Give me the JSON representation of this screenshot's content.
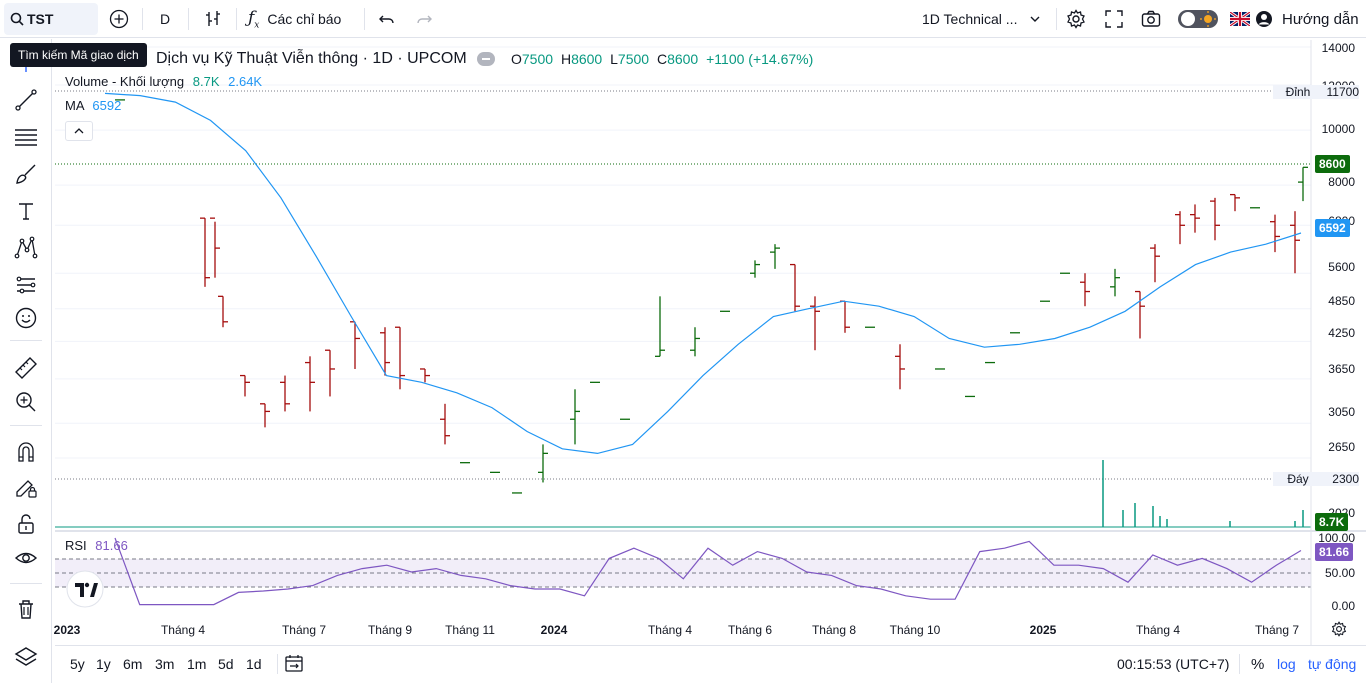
{
  "topbar": {
    "symbol": "TST",
    "interval": "D",
    "indicators_label": "Các chỉ báo",
    "layout_name": "1D Technical ...",
    "help_label": "Hướng dẫn",
    "search_tooltip": "Tìm kiếm Mã giao dịch"
  },
  "legend": {
    "title": "Dịch vụ Kỹ Thuật Viễn thông · 1D · UPCOM",
    "o_key": "O",
    "o_val": "7500",
    "h_key": "H",
    "h_val": "8600",
    "l_key": "L",
    "l_val": "7500",
    "c_key": "C",
    "c_val": "8600",
    "change": "+1100 (+14.67%)",
    "volume_label": "Volume - Khối lượng",
    "volume_val1": "8.7K",
    "volume_val2": "2.64K",
    "ma_label": "MA",
    "ma_val": "6592",
    "rsi_label": "RSI",
    "rsi_val": "81.66"
  },
  "price_axis": {
    "ticks": [
      "14000",
      "12000",
      "10000",
      "8000",
      "6800",
      "5600",
      "4850",
      "4250",
      "3650",
      "3050",
      "2650",
      "2300",
      "2020"
    ],
    "peak_label": "Đỉnh",
    "peak_value": "11700",
    "trough_label": "Đáy",
    "trough_value": "2300",
    "last_price": "8600",
    "ma_tag": "6592",
    "volume_tag": "8.7K"
  },
  "rsi_axis": {
    "ticks": [
      "100.00",
      "50.00",
      "0.00"
    ],
    "tag": "81.66"
  },
  "time_axis": {
    "labels": [
      "2023",
      "Tháng 4",
      "Tháng 7",
      "Tháng 9",
      "Tháng 11",
      "2024",
      "Tháng 4",
      "Tháng 6",
      "Tháng 8",
      "Tháng 10",
      "2025",
      "Tháng 4",
      "Tháng 7"
    ]
  },
  "bottombar": {
    "ranges": [
      "5y",
      "1y",
      "6m",
      "3m",
      "1m",
      "5d",
      "1d"
    ],
    "clock": "00:15:53 (UTC+7)",
    "percent": "%",
    "log": "log",
    "auto": "tự động"
  },
  "colors": {
    "up": "#089981",
    "down": "#f23645",
    "bar_up": "#0c6b0c",
    "bar_down": "#a50d0d",
    "ma": "#2196f3",
    "rsi": "#7e57c2",
    "accent": "#2962ff"
  },
  "chart_data": {
    "type": "line",
    "series": [
      {
        "name": "MA",
        "values": [
          11600,
          11500,
          11200,
          10400,
          9200,
          7600,
          6000,
          4700,
          3700,
          3600,
          3450,
          3250,
          2950,
          2750,
          2700,
          2800,
          3200,
          3700,
          4200,
          4700,
          4850,
          5000,
          4900,
          4700,
          4300,
          4150,
          4200,
          4300,
          4500,
          4800,
          5300,
          5800,
          6100,
          6300,
          6592
        ]
      },
      {
        "name": "RSI",
        "values": [
          100,
          2,
          2,
          2,
          2,
          20,
          22,
          25,
          30,
          45,
          55,
          60,
          50,
          55,
          45,
          40,
          30,
          25,
          25,
          15,
          70,
          85,
          70,
          40,
          85,
          60,
          80,
          70,
          50,
          45,
          30,
          25,
          15,
          10,
          10,
          80,
          85,
          95,
          60,
          60,
          55,
          35,
          75,
          60,
          70,
          55,
          35,
          60,
          81.66
        ]
      }
    ],
    "peak": 11700,
    "trough": 2300,
    "last": 8600
  }
}
